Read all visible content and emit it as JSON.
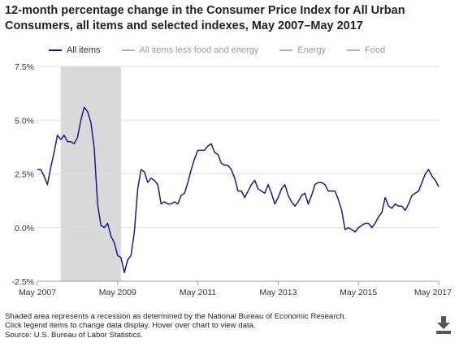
{
  "title_line1": "12-month percentage change in the Consumer Price Index for All Urban",
  "title_line2": "Consumers, all items and selected indexes, May 2007–May 2017",
  "legend": [
    {
      "label": "All items",
      "color": "#1a1a8c",
      "active": true
    },
    {
      "label": "All items less food and energy",
      "color": "#b3b3b3",
      "active": false
    },
    {
      "label": "Energy",
      "color": "#b3b3b3",
      "active": false
    },
    {
      "label": "Food",
      "color": "#b3b3b3",
      "active": false
    }
  ],
  "footer": {
    "line1": "Shaded area represents a recession as determined by the National Bureau of Economic Research.",
    "line2": "Click legend items to change data display. Hover over chart to view data.",
    "line3": "Source: U.S. Bureau of Labor Statistics."
  },
  "icons": {
    "download": "download-icon"
  },
  "chart_data": {
    "type": "line",
    "title": "12-month percentage change in the Consumer Price Index for All Urban Consumers, all items and selected indexes, May 2007–May 2017",
    "xlabel": "",
    "ylabel": "",
    "x_start": "May 2007",
    "x_end": "May 2017",
    "x_tick_labels": [
      "May 2007",
      "May 2009",
      "May 2011",
      "May 2013",
      "May 2015",
      "May 2017"
    ],
    "y_tick_labels": [
      "7.5%",
      "5.0%",
      "2.5%",
      "0.0%",
      "-2.5%"
    ],
    "y_ticks": [
      7.5,
      5.0,
      2.5,
      0.0,
      -2.5
    ],
    "ylim": [
      -2.5,
      7.5
    ],
    "grid": "horizontal",
    "recession": {
      "start": "Dec 2007",
      "end": "Jun 2009",
      "color": "#d9d9d9"
    },
    "series": [
      {
        "name": "All items",
        "color": "#1a1a8c",
        "frequency": "monthly",
        "values": [
          2.7,
          2.7,
          2.4,
          2.0,
          2.8,
          3.5,
          4.3,
          4.1,
          4.3,
          4.0,
          4.0,
          3.9,
          4.2,
          5.0,
          5.6,
          5.4,
          4.9,
          3.7,
          1.1,
          0.1,
          0.0,
          0.2,
          -0.4,
          -0.7,
          -1.3,
          -1.4,
          -2.1,
          -1.5,
          -1.3,
          -0.2,
          1.8,
          2.7,
          2.6,
          2.1,
          2.3,
          2.2,
          2.0,
          1.1,
          1.2,
          1.1,
          1.1,
          1.2,
          1.1,
          1.5,
          1.6,
          2.1,
          2.7,
          3.2,
          3.6,
          3.6,
          3.6,
          3.8,
          3.9,
          3.5,
          3.4,
          3.0,
          2.9,
          2.9,
          2.7,
          2.3,
          1.7,
          1.7,
          1.4,
          1.7,
          2.0,
          2.2,
          1.8,
          1.7,
          1.6,
          2.0,
          1.6,
          1.1,
          1.4,
          1.8,
          2.0,
          1.5,
          1.2,
          1.0,
          1.2,
          1.5,
          1.6,
          1.1,
          1.5,
          2.0,
          2.1,
          2.1,
          2.0,
          1.7,
          1.7,
          1.7,
          1.3,
          0.8,
          -0.1,
          0.0,
          -0.1,
          -0.2,
          0.0,
          0.1,
          0.2,
          0.2,
          0.0,
          0.2,
          0.5,
          0.7,
          1.4,
          1.0,
          0.9,
          1.1,
          1.0,
          1.0,
          0.8,
          1.1,
          1.5,
          1.6,
          1.7,
          2.1,
          2.5,
          2.7,
          2.4,
          2.2,
          1.9
        ]
      }
    ]
  }
}
